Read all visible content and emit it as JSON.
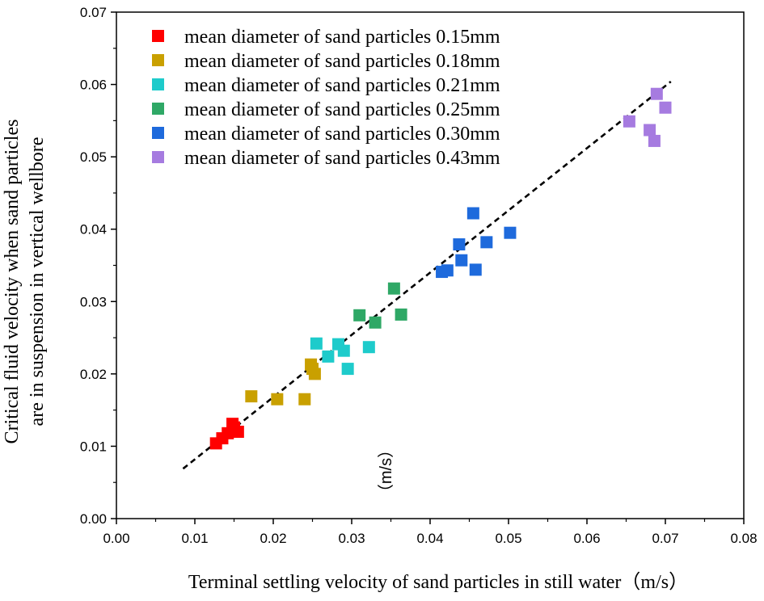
{
  "chart_data": {
    "type": "scatter",
    "xlabel": "Terminal settling velocity of sand particles in still water（m/s）",
    "ylabel_lines": [
      "Critical fluid velocity when sand particles",
      "are in suspension in vertical wellbore"
    ],
    "xlim": [
      0,
      0.08
    ],
    "ylim": [
      0,
      0.07
    ],
    "x_ticks": [
      "0.00",
      "0.01",
      "0.02",
      "0.03",
      "0.04",
      "0.05",
      "0.06",
      "0.07",
      "0.08"
    ],
    "y_ticks": [
      "0.00",
      "0.01",
      "0.02",
      "0.03",
      "0.04",
      "0.05",
      "0.06",
      "0.07"
    ],
    "grid": false,
    "legend_position": "top-left",
    "annotation": "（m/s）",
    "series": [
      {
        "name": "mean diameter of sand particles 0.15mm",
        "color": "#ff0000",
        "points": [
          [
            0.0127,
            0.0104
          ],
          [
            0.0135,
            0.0111
          ],
          [
            0.0142,
            0.0118
          ],
          [
            0.0148,
            0.0131
          ],
          [
            0.015,
            0.0126
          ],
          [
            0.0155,
            0.012
          ]
        ]
      },
      {
        "name": "mean diameter of sand particles 0.18mm",
        "color": "#c9a000",
        "points": [
          [
            0.0172,
            0.0169
          ],
          [
            0.0205,
            0.0165
          ],
          [
            0.024,
            0.0165
          ],
          [
            0.0248,
            0.0213
          ],
          [
            0.025,
            0.0207
          ],
          [
            0.0253,
            0.02
          ]
        ]
      },
      {
        "name": "mean diameter of sand particles 0.21mm",
        "color": "#1ecbcb",
        "points": [
          [
            0.0255,
            0.0242
          ],
          [
            0.027,
            0.0224
          ],
          [
            0.0283,
            0.0241
          ],
          [
            0.029,
            0.0232
          ],
          [
            0.0295,
            0.0207
          ],
          [
            0.0322,
            0.0237
          ]
        ]
      },
      {
        "name": "mean diameter of sand particles 0.25mm",
        "color": "#2fa866",
        "points": [
          [
            0.031,
            0.0281
          ],
          [
            0.033,
            0.0271
          ],
          [
            0.0354,
            0.0318
          ],
          [
            0.0363,
            0.0282
          ]
        ]
      },
      {
        "name": "mean diameter of sand particles 0.30mm",
        "color": "#1e6adc",
        "points": [
          [
            0.0415,
            0.0341
          ],
          [
            0.0422,
            0.0343
          ],
          [
            0.0437,
            0.0379
          ],
          [
            0.044,
            0.0357
          ],
          [
            0.0455,
            0.0422
          ],
          [
            0.0458,
            0.0344
          ],
          [
            0.0472,
            0.0382
          ],
          [
            0.0502,
            0.0395
          ]
        ]
      },
      {
        "name": "mean diameter of sand particles 0.43mm",
        "color": "#a67be0",
        "points": [
          [
            0.0654,
            0.0549
          ],
          [
            0.068,
            0.0537
          ],
          [
            0.0686,
            0.0522
          ],
          [
            0.0689,
            0.0587
          ],
          [
            0.07,
            0.0568
          ]
        ]
      }
    ],
    "fit_line": {
      "style": "dashed",
      "color": "#000000",
      "x": [
        0.0085,
        0.0707
      ],
      "y": [
        0.0069,
        0.0604
      ]
    }
  }
}
